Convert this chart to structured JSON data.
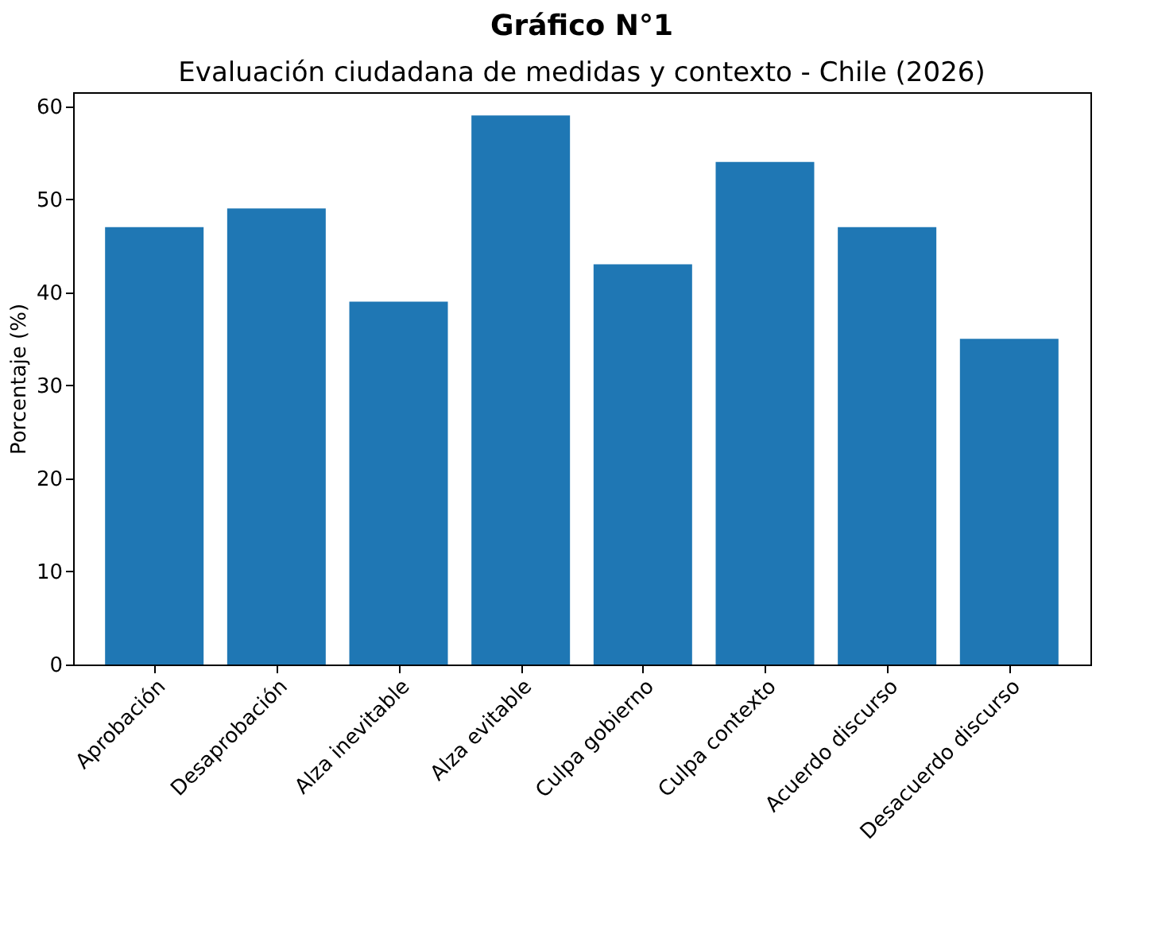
{
  "chart_data": {
    "type": "bar",
    "title": "Gráfico N°1",
    "subtitle": "Evaluación ciudadana de medidas y contexto - Chile (2026)",
    "ylabel": "Porcentaje (%)",
    "categories": [
      "Aprobación",
      "Desaprobación",
      "Alza inevitable",
      "Alza evitable",
      "Culpa gobierno",
      "Culpa contexto",
      "Acuerdo discurso",
      "Desacuerdo discurso"
    ],
    "values": [
      47,
      49,
      39,
      59,
      43,
      54,
      47,
      35
    ],
    "color": "#1f77b4",
    "ylim": [
      0,
      61.5
    ],
    "yticks": [
      0,
      10,
      20,
      30,
      40,
      50,
      60
    ],
    "grid": false
  }
}
